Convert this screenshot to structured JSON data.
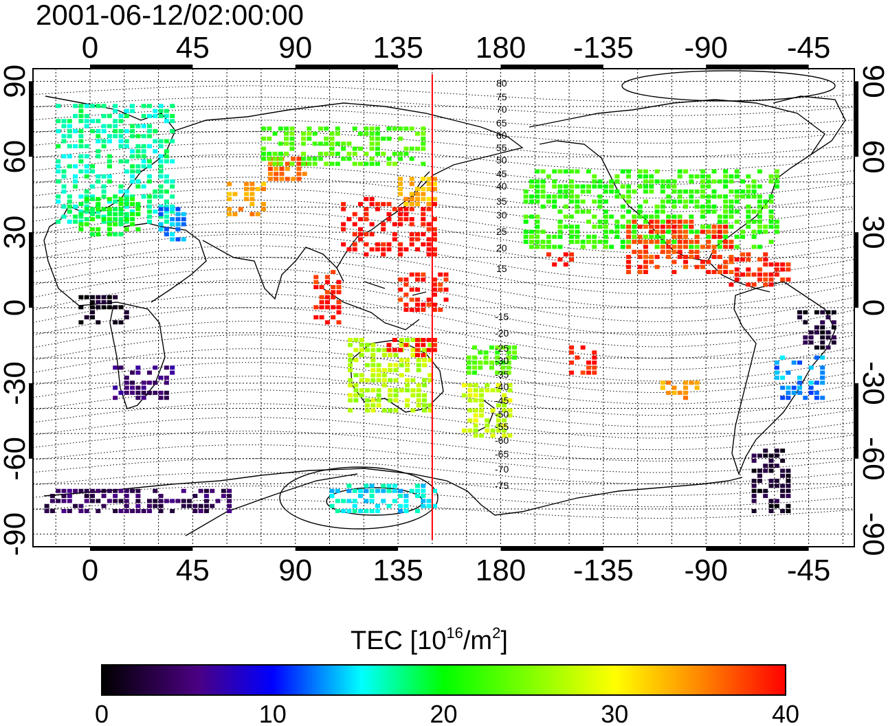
{
  "title": "2001-06-12/02:00:00",
  "axes": {
    "x_ticks": [
      "0",
      "45",
      "90",
      "135",
      "180",
      "-135",
      "-90",
      "-45"
    ],
    "y_ticks_left": [
      "90",
      "60",
      "30",
      "0",
      "-30",
      "-60",
      "-90"
    ],
    "y_ticks_right": [
      "90",
      "60",
      "30",
      "0",
      "-30",
      "-60",
      "-90"
    ],
    "lon_range": [
      -25,
      335
    ],
    "lat_range": [
      -95,
      95
    ],
    "marker_longitude": 150
  },
  "contours": {
    "north": [
      "80",
      "75",
      "70",
      "65",
      "60",
      "55",
      "50",
      "45",
      "40",
      "35",
      "30",
      "25",
      "20",
      "15"
    ],
    "south": [
      "-15",
      "-20",
      "-25",
      "-30",
      "-35",
      "-40",
      "-45",
      "-50",
      "-55",
      "-60",
      "-65",
      "-70",
      "-75"
    ]
  },
  "colorbar": {
    "title_main": "TEC  [10",
    "title_sup1": "16",
    "title_mid": "/m",
    "title_sup2": "2",
    "title_end": "]",
    "range": [
      0,
      40
    ],
    "tick_labels": [
      "0",
      "10",
      "20",
      "30",
      "40"
    ],
    "colors": [
      "#000000",
      "#4b0082",
      "#0000ff",
      "#00ffff",
      "#00ff00",
      "#ffff00",
      "#ff8c00",
      "#ff0000"
    ]
  },
  "tec_regions": [
    {
      "lon": [
        -15,
        35
      ],
      "lat": [
        35,
        82
      ],
      "tec": 17
    },
    {
      "lon": [
        -5,
        20
      ],
      "lat": [
        30,
        45
      ],
      "tec": 20
    },
    {
      "lon": [
        30,
        40
      ],
      "lat": [
        28,
        40
      ],
      "tec": 13
    },
    {
      "lon": [
        60,
        75
      ],
      "lat": [
        38,
        50
      ],
      "tec": 34
    },
    {
      "lon": [
        78,
        95
      ],
      "lat": [
        52,
        60
      ],
      "tec": 36
    },
    {
      "lon": [
        110,
        150
      ],
      "lat": [
        22,
        45
      ],
      "tec": 40
    },
    {
      "lon": [
        135,
        150
      ],
      "lat": [
        42,
        52
      ],
      "tec": 33
    },
    {
      "lon": [
        75,
        145
      ],
      "lat": [
        58,
        72
      ],
      "tec": 23
    },
    {
      "lon": [
        135,
        155
      ],
      "lat": [
        0,
        15
      ],
      "tec": 39
    },
    {
      "lon": [
        98,
        110
      ],
      "lat": [
        -5,
        15
      ],
      "tec": 39
    },
    {
      "lon": [
        113,
        150
      ],
      "lat": [
        -40,
        -12
      ],
      "tec": 27
    },
    {
      "lon": [
        130,
        150
      ],
      "lat": [
        -18,
        -12
      ],
      "tec": 40
    },
    {
      "lon": [
        163,
        185
      ],
      "lat": [
        -50,
        -30
      ],
      "tec": 28
    },
    {
      "lon": [
        165,
        185
      ],
      "lat": [
        -25,
        -15
      ],
      "tec": 23
    },
    {
      "lon": [
        -5,
        15
      ],
      "lat": [
        5,
        -5
      ],
      "tec": 1
    },
    {
      "lon": [
        10,
        35
      ],
      "lat": [
        -35,
        -22
      ],
      "tec": 5
    },
    {
      "lon": [
        -20,
        60
      ],
      "lat": [
        -80,
        -72
      ],
      "tec": 4
    },
    {
      "lon": [
        105,
        150
      ],
      "lat": [
        -80,
        -70
      ],
      "tec": 15
    },
    {
      "lon": [
        -170,
        -60
      ],
      "lat": [
        25,
        55
      ],
      "tec": 22
    },
    {
      "lon": [
        -125,
        -80
      ],
      "lat": [
        15,
        35
      ],
      "tec": 38
    },
    {
      "lon": [
        -160,
        -150
      ],
      "lat": [
        18,
        23
      ],
      "tec": 40
    },
    {
      "lon": [
        -80,
        -55
      ],
      "lat": [
        10,
        22
      ],
      "tec": 39
    },
    {
      "lon": [
        -50,
        -35
      ],
      "lat": [
        -15,
        0
      ],
      "tec": 2
    },
    {
      "lon": [
        -60,
        -40
      ],
      "lat": [
        -35,
        -18
      ],
      "tec": 13
    },
    {
      "lon": [
        -70,
        -55
      ],
      "lat": [
        -80,
        -55
      ],
      "tec": 2
    },
    {
      "lon": [
        -110,
        -95
      ],
      "lat": [
        -35,
        -28
      ],
      "tec": 34
    },
    {
      "lon": [
        -150,
        -140
      ],
      "lat": [
        -25,
        -15
      ],
      "tec": 39
    }
  ]
}
